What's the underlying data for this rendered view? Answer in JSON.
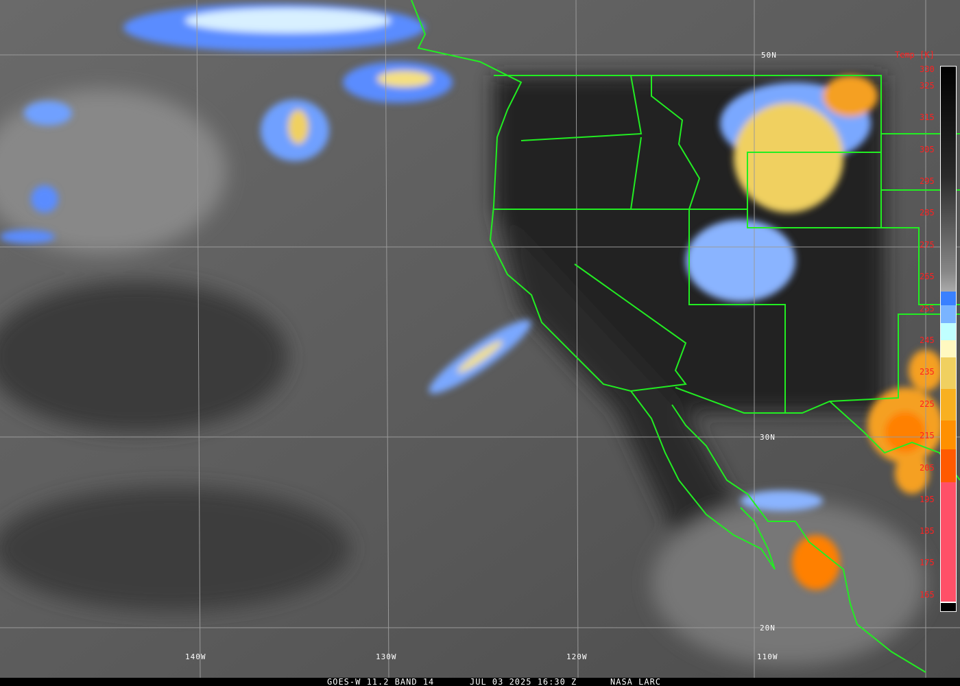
{
  "map": {
    "type": "satellite infrared image",
    "region": "US West Coast and Eastern Pacific",
    "lat_labels": [
      "50N",
      "30N",
      "20N"
    ],
    "lon_labels": [
      "140W",
      "130W",
      "120W",
      "110W"
    ],
    "boundary_color": "#22ee22"
  },
  "colorbar": {
    "title": "Temp [K]",
    "ticks": [
      "330",
      "325",
      "315",
      "305",
      "295",
      "285",
      "275",
      "265",
      "255",
      "245",
      "235",
      "225",
      "215",
      "205",
      "195",
      "185",
      "175",
      "165"
    ],
    "tick_color": "#ff2020"
  },
  "caption": {
    "product": "GOES-W 11.2 BAND 14",
    "datetime": "JUL 03 2025 16:30 Z",
    "source": "NASA LARC"
  }
}
